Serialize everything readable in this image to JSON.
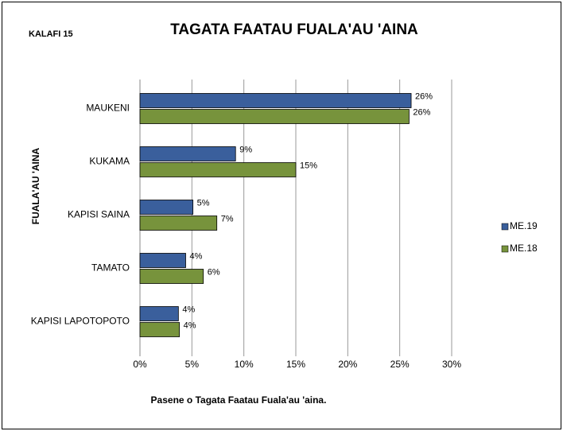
{
  "chart_data": {
    "type": "hbar",
    "title": "TAGATA FAATAU FUALA'AU 'AINA",
    "subtitle": "KALAFI 15",
    "x_label": "Pasene o Tagata Faatau Fuala'au  'aina.",
    "y_label": "FUALA'AU 'AINA",
    "categories": [
      "MAUKENI",
      "KUKAMA",
      "KAPISI SAINA",
      "TAMATO",
      "KAPISI LAPOTOPOTO"
    ],
    "series": [
      {
        "name": "ME.19",
        "color": "#3a5f9c",
        "values": [
          26.1,
          9.2,
          5.1,
          4.4,
          3.7
        ],
        "value_labels": [
          "26%",
          "9%",
          "5%",
          "4%",
          "4%"
        ]
      },
      {
        "name": "ME.18",
        "color": "#77933c",
        "values": [
          25.9,
          15.0,
          7.4,
          6.1,
          3.8
        ],
        "value_labels": [
          "26%",
          "15%",
          "7%",
          "6%",
          "4%"
        ]
      }
    ],
    "xlim": [
      0,
      30
    ],
    "xticks": [
      {
        "value": 0,
        "label": "0%"
      },
      {
        "value": 5,
        "label": "5%"
      },
      {
        "value": 10,
        "label": "10%"
      },
      {
        "value": 15,
        "label": "15%"
      },
      {
        "value": 20,
        "label": "20%"
      },
      {
        "value": 25,
        "label": "25%"
      },
      {
        "value": 30,
        "label": "30%"
      }
    ],
    "grid": true,
    "legend": "right"
  }
}
